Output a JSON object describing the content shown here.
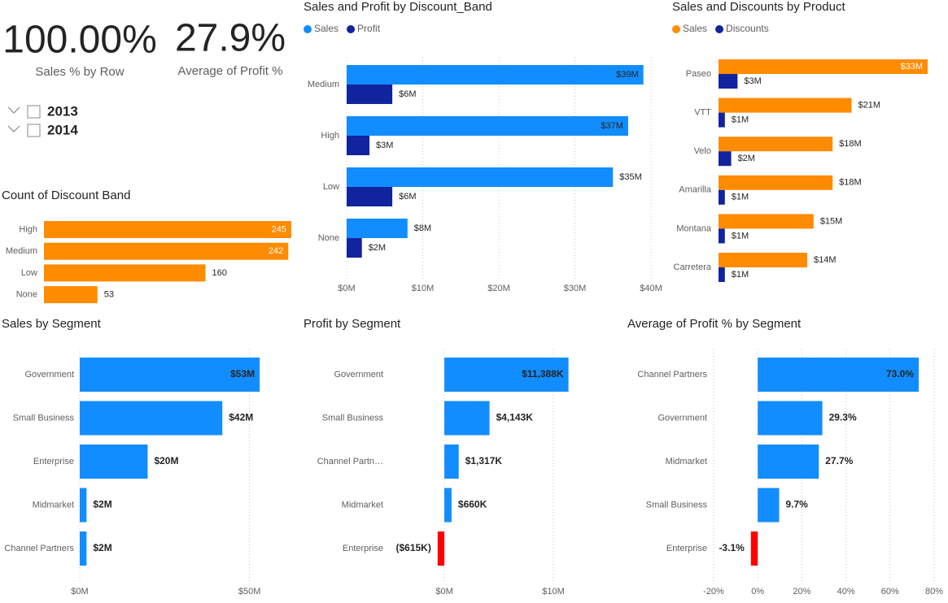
{
  "cards": [
    {
      "value": "100.00%",
      "label": "Sales % by Row"
    },
    {
      "value": "27.9%",
      "label": "Average of Profit %"
    }
  ],
  "slicer": {
    "items": [
      "2013",
      "2014"
    ]
  },
  "chart_data": [
    {
      "type": "bar",
      "title": "Sales and Profit by Discount_Band",
      "categories": [
        "Medium",
        "High",
        "Low",
        "None"
      ],
      "series": [
        {
          "name": "Sales",
          "color": "#118DFF",
          "values": [
            39,
            37,
            35,
            8
          ],
          "value_labels": [
            "$39M",
            "$37M",
            "$35M",
            "$8M"
          ]
        },
        {
          "name": "Profit",
          "color": "#12239E",
          "values": [
            6,
            3,
            6,
            2
          ],
          "value_labels": [
            "$6M",
            "$3M",
            "$6M",
            "$2M"
          ]
        }
      ],
      "xlim": [
        0,
        40
      ],
      "xticks": [
        {
          "value": 0,
          "label": "$0M"
        },
        {
          "value": 10,
          "label": "$10M"
        },
        {
          "value": 20,
          "label": "$20M"
        },
        {
          "value": 30,
          "label": "$30M"
        },
        {
          "value": 40,
          "label": "$40M"
        }
      ],
      "grid": true
    },
    {
      "type": "bar",
      "title": "Sales and Discounts by Product",
      "categories": [
        "Paseo",
        "VTT",
        "Velo",
        "Amarilla",
        "Montana",
        "Carretera"
      ],
      "series": [
        {
          "name": "Sales",
          "color": "#FF8B00",
          "values": [
            33,
            21,
            18,
            18,
            15,
            14
          ],
          "value_labels": [
            "$33M",
            "$21M",
            "$18M",
            "$18M",
            "$15M",
            "$14M"
          ]
        },
        {
          "name": "Discounts",
          "color": "#12239E",
          "values": [
            3,
            1,
            2,
            1,
            1,
            1
          ],
          "value_labels": [
            "$3M",
            "$1M",
            "$2M",
            "$1M",
            "$1M",
            "$1M"
          ]
        }
      ]
    },
    {
      "type": "bar",
      "title": "Count of Discount Band",
      "categories": [
        "High",
        "Medium",
        "Low",
        "None"
      ],
      "values": [
        245,
        242,
        160,
        53
      ],
      "color": "#FF8B00"
    },
    {
      "type": "bar",
      "title": "Sales by Segment",
      "categories": [
        "Government",
        "Small Business",
        "Enterprise",
        "Midmarket",
        "Channel Partners"
      ],
      "values": [
        53,
        42,
        20,
        2,
        2
      ],
      "value_labels": [
        "$53M",
        "$42M",
        "$20M",
        "$2M",
        "$2M"
      ],
      "color": "#118DFF",
      "xlim": [
        0,
        58
      ],
      "xticks": [
        {
          "value": 0,
          "label": "$0M"
        },
        {
          "value": 50,
          "label": "$50M"
        }
      ],
      "grid": true
    },
    {
      "type": "bar",
      "title": "Profit by Segment",
      "categories": [
        "Government",
        "Small Business",
        "Channel Partn…",
        "Midmarket",
        "Enterprise"
      ],
      "values": [
        11.388,
        4.143,
        1.317,
        0.66,
        -0.615
      ],
      "value_labels": [
        "$11,388K",
        "$4,143K",
        "$1,317K",
        "$660K",
        "($615K)"
      ],
      "color": "#118DFF",
      "negative_color": "#FF0000",
      "xlim": [
        -1.2,
        15
      ],
      "xticks": [
        {
          "value": 0,
          "label": "$0M"
        },
        {
          "value": 10,
          "label": "$10M"
        }
      ],
      "grid": true
    },
    {
      "type": "bar",
      "title": "Average of Profit % by Segment",
      "categories": [
        "Channel Partners",
        "Government",
        "Midmarket",
        "Small Business",
        "Enterprise"
      ],
      "values": [
        73.0,
        29.3,
        27.7,
        9.7,
        -3.1
      ],
      "value_labels": [
        "73.0%",
        "29.3%",
        "27.7%",
        "9.7%",
        "-3.1%"
      ],
      "color": "#118DFF",
      "negative_color": "#FF0000",
      "xlim": [
        -20,
        80
      ],
      "xticks": [
        {
          "value": -20,
          "label": "-20%"
        },
        {
          "value": 0,
          "label": "0%"
        },
        {
          "value": 20,
          "label": "20%"
        },
        {
          "value": 40,
          "label": "40%"
        },
        {
          "value": 60,
          "label": "60%"
        },
        {
          "value": 80,
          "label": "80%"
        }
      ],
      "grid": true
    }
  ]
}
